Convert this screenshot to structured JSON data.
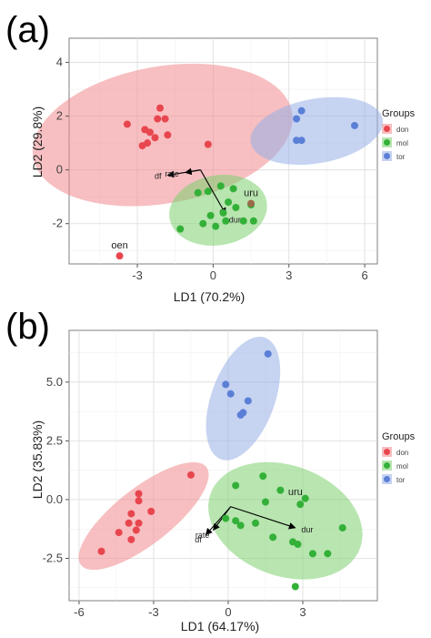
{
  "colors": {
    "don": "#e8464f",
    "mol": "#33b038",
    "tor": "#5b7fd6",
    "don_ellipse": "#f08a8e",
    "mol_ellipse": "#7ed06f",
    "tor_ellipse": "#97aee6",
    "outlier_uru": "#9a6a4a",
    "arrow": "#000000"
  },
  "chart_data": [
    {
      "type": "scatter",
      "panel_label": "(a)",
      "xlabel": "LD1 (70.2%)",
      "ylabel": "LD2 (29.8%)",
      "xlim": [
        -5.7,
        6.5
      ],
      "ylim": [
        -3.5,
        4.9
      ],
      "xticks": [
        -3,
        0,
        3,
        6
      ],
      "yticks": [
        -2,
        0,
        2,
        4
      ],
      "xtick_labels": [
        "-3",
        "0",
        "3",
        "6"
      ],
      "ytick_labels": [
        "-2",
        "0",
        "2",
        "4"
      ],
      "grid": true,
      "legend": {
        "title": "Groups",
        "position": "right",
        "entries": [
          "don",
          "mol",
          "tor"
        ]
      },
      "series": [
        {
          "name": "don",
          "points": [
            [
              -3.4,
              1.7
            ],
            [
              -2.7,
              1.5
            ],
            [
              -2.5,
              1.4
            ],
            [
              -2.2,
              1.9
            ],
            [
              -2.1,
              2.3
            ],
            [
              -1.9,
              1.9
            ],
            [
              -1.8,
              1.3
            ],
            [
              -2.3,
              1.2
            ],
            [
              -2.6,
              1.0
            ],
            [
              -2.8,
              0.9
            ],
            [
              -0.2,
              0.95
            ]
          ]
        },
        {
          "name": "mol",
          "points": [
            [
              -0.6,
              -0.85
            ],
            [
              -0.2,
              -0.8
            ],
            [
              0.3,
              -0.6
            ],
            [
              0.6,
              -1.2
            ],
            [
              0.9,
              -1.4
            ],
            [
              0.4,
              -1.6
            ],
            [
              -0.1,
              -1.7
            ],
            [
              0.1,
              -2.1
            ],
            [
              0.5,
              -1.9
            ],
            [
              -0.4,
              -2.0
            ],
            [
              -1.3,
              -2.2
            ],
            [
              1.2,
              -1.9
            ],
            [
              1.6,
              -1.9
            ],
            [
              1.5,
              -1.3
            ],
            [
              0.8,
              -0.7
            ]
          ]
        },
        {
          "name": "tor",
          "points": [
            [
              3.3,
              1.9
            ],
            [
              3.5,
              2.2
            ],
            [
              3.3,
              1.1
            ],
            [
              3.5,
              1.1
            ],
            [
              5.6,
              1.65
            ]
          ]
        }
      ],
      "ellipses": [
        {
          "group": "don",
          "center": [
            -2.0,
            1.3
          ],
          "rx": 5.2,
          "ry": 2.55,
          "angle_deg": 10
        },
        {
          "group": "mol",
          "center": [
            0.2,
            -1.5
          ],
          "rx": 1.95,
          "ry": 1.3,
          "angle_deg": 10
        },
        {
          "group": "tor",
          "center": [
            4.1,
            1.45
          ],
          "rx": 2.65,
          "ry": 1.2,
          "angle_deg": 10
        }
      ],
      "highlighted_points": [
        {
          "label": "oen",
          "group": "don",
          "x": -3.7,
          "y": -3.2
        },
        {
          "label": "uru",
          "group": "mol",
          "x": 1.5,
          "y": -1.25
        }
      ],
      "arrows": {
        "origin": [
          -0.5,
          0.0
        ],
        "items": [
          {
            "label": "df",
            "end": [
              -1.8,
              -0.2
            ]
          },
          {
            "label": "rate",
            "end": [
              -1.1,
              -0.1
            ]
          },
          {
            "label": "dur",
            "end": [
              0.5,
              -1.65
            ]
          }
        ]
      }
    },
    {
      "type": "scatter",
      "panel_label": "(b)",
      "xlabel": "LD1 (64.17%)",
      "ylabel": "LD2 (35.83%)",
      "xlim": [
        -6.4,
        6.0
      ],
      "ylim": [
        -4.3,
        7.2
      ],
      "xticks": [
        -6,
        -3,
        0,
        3
      ],
      "yticks": [
        -2.5,
        0.0,
        2.5,
        5.0
      ],
      "xtick_labels": [
        "-6",
        "-3",
        "0",
        "3"
      ],
      "ytick_labels": [
        "-2.5",
        "0.0",
        "2.5",
        "5.0"
      ],
      "grid": true,
      "legend": {
        "title": "Groups",
        "position": "right",
        "entries": [
          "don",
          "mol",
          "tor"
        ]
      },
      "series": [
        {
          "name": "don",
          "points": [
            [
              -3.6,
              0.25
            ],
            [
              -3.6,
              -0.05
            ],
            [
              -3.1,
              -0.5
            ],
            [
              -3.9,
              -0.6
            ],
            [
              -4.0,
              -1.0
            ],
            [
              -3.6,
              -1.0
            ],
            [
              -3.7,
              -1.3
            ],
            [
              -4.4,
              -1.4
            ],
            [
              -3.9,
              -1.7
            ],
            [
              -5.1,
              -2.2
            ],
            [
              -1.5,
              1.05
            ]
          ]
        },
        {
          "name": "mol",
          "points": [
            [
              0.3,
              0.6
            ],
            [
              1.4,
              1.0
            ],
            [
              1.5,
              -0.1
            ],
            [
              2.1,
              0.4
            ],
            [
              3.1,
              0.05
            ],
            [
              0.3,
              -0.9
            ],
            [
              0.5,
              -1.1
            ],
            [
              1.1,
              -1.0
            ],
            [
              -0.1,
              -0.8
            ],
            [
              1.8,
              -1.6
            ],
            [
              2.6,
              -1.8
            ],
            [
              2.8,
              -1.9
            ],
            [
              3.4,
              -2.3
            ],
            [
              4.0,
              -2.3
            ],
            [
              4.6,
              -1.2
            ],
            [
              2.9,
              -0.2
            ],
            [
              2.7,
              -3.7
            ]
          ]
        },
        {
          "name": "tor",
          "points": [
            [
              1.6,
              6.2
            ],
            [
              -0.1,
              4.9
            ],
            [
              0.1,
              4.5
            ],
            [
              0.8,
              4.2
            ],
            [
              0.6,
              3.7
            ],
            [
              0.5,
              3.6
            ]
          ]
        }
      ],
      "ellipses": [
        {
          "group": "don",
          "center": [
            -3.4,
            -0.7
          ],
          "rx": 3.2,
          "ry": 1.2,
          "angle_deg": 38
        },
        {
          "group": "mol",
          "center": [
            2.3,
            -0.9
          ],
          "rx": 3.2,
          "ry": 2.35,
          "angle_deg": -20
        },
        {
          "group": "tor",
          "center": [
            0.6,
            4.3
          ],
          "rx": 2.6,
          "ry": 1.35,
          "angle_deg": 70
        }
      ],
      "highlighted_points": [],
      "text_labels": [
        {
          "label": "uru",
          "x": 2.7,
          "y": 0.2
        }
      ],
      "arrows": {
        "origin": [
          0.1,
          -0.3
        ],
        "items": [
          {
            "label": "rate",
            "end": [
              -0.6,
              -1.3
            ]
          },
          {
            "label": "df",
            "end": [
              -0.9,
              -1.5
            ]
          },
          {
            "label": "dur",
            "end": [
              2.7,
              -1.2
            ]
          }
        ]
      }
    }
  ]
}
